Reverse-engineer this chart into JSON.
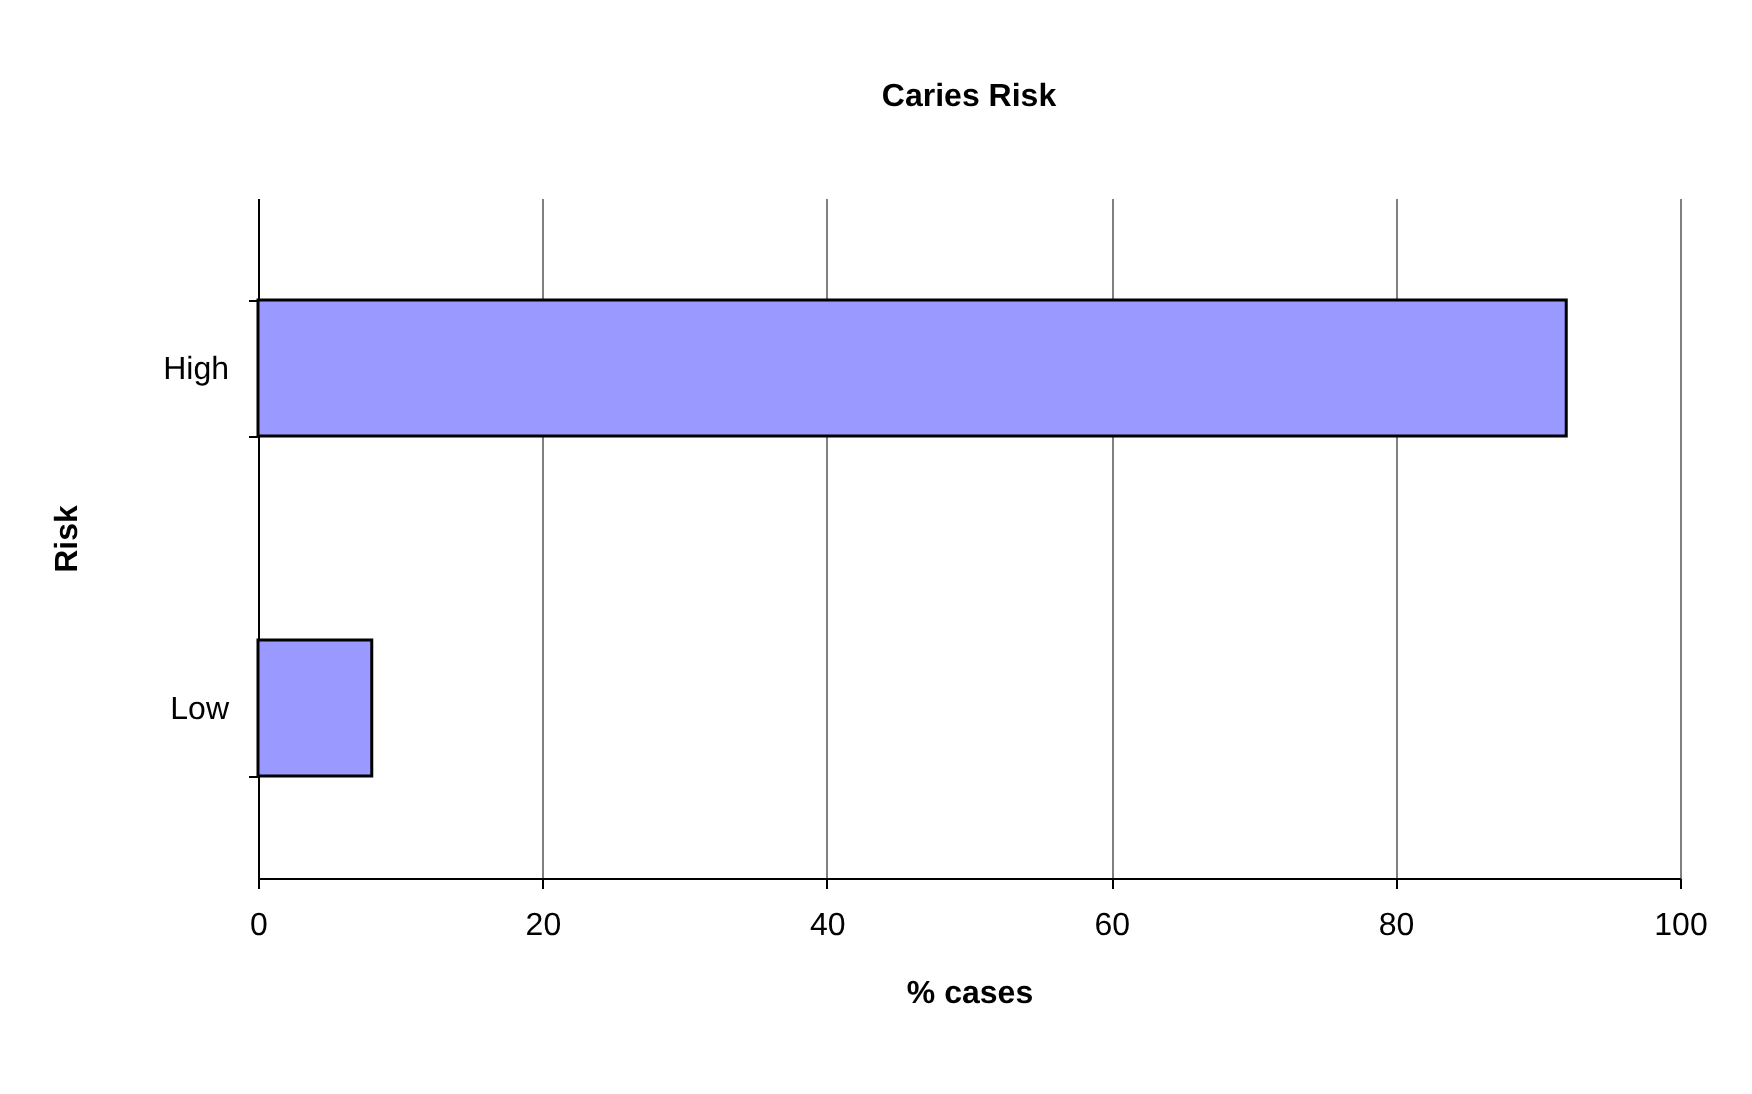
{
  "chart_data": {
    "type": "bar",
    "orientation": "horizontal",
    "title": "Caries Risk",
    "xlabel": "% cases",
    "ylabel": "Risk",
    "categories": [
      "High",
      "Low"
    ],
    "values": [
      92,
      8
    ],
    "color": "#9999ff",
    "xlim": [
      0,
      100
    ],
    "xticks": [
      0,
      20,
      40,
      60,
      80,
      100
    ],
    "grid": "x"
  }
}
